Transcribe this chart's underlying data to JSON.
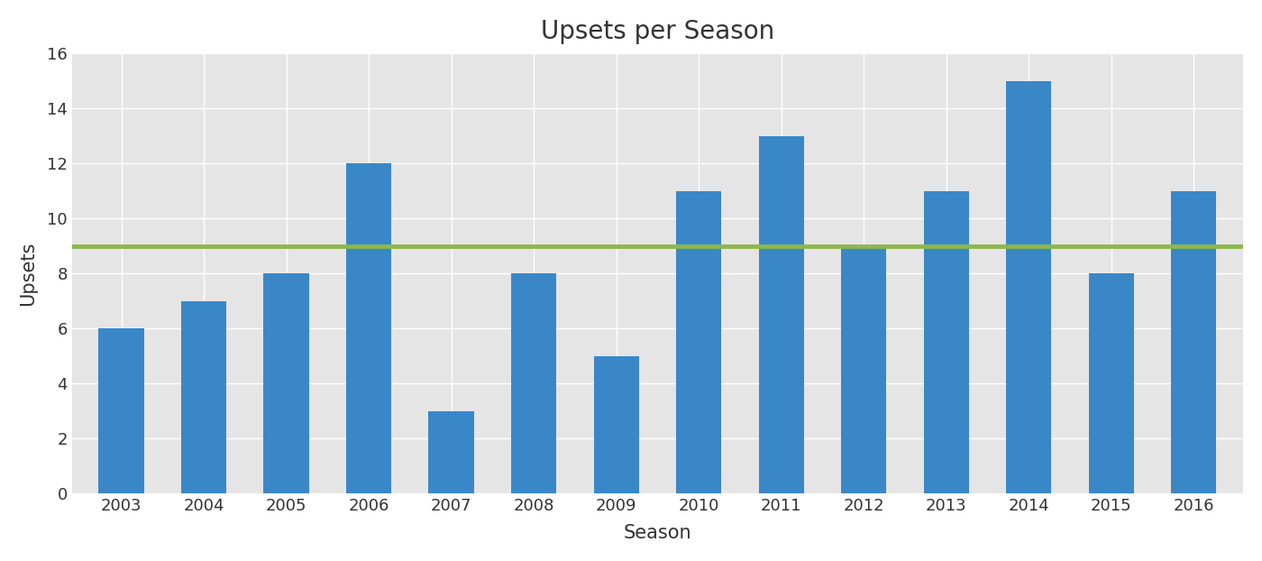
{
  "title": "Upsets per Season",
  "xlabel": "Season",
  "ylabel": "Upsets",
  "categories": [
    "2003",
    "2004",
    "2005",
    "2006",
    "2007",
    "2008",
    "2009",
    "2010",
    "2011",
    "2012",
    "2013",
    "2014",
    "2015",
    "2016"
  ],
  "values": [
    6,
    7,
    8,
    12,
    3,
    8,
    5,
    11,
    13,
    9,
    11,
    15,
    8,
    11
  ],
  "bar_color": "#3a87c8",
  "line_value": 9,
  "line_color": "#8db84a",
  "line_width": 3.5,
  "figure_background": "#ffffff",
  "axes_background": "#e5e5e5",
  "grid_color": "#ffffff",
  "ylim": [
    0,
    16
  ],
  "yticks": [
    0,
    2,
    4,
    6,
    8,
    10,
    12,
    14,
    16
  ],
  "title_fontsize": 20,
  "axis_label_fontsize": 15,
  "tick_fontsize": 13,
  "bar_width": 0.55
}
